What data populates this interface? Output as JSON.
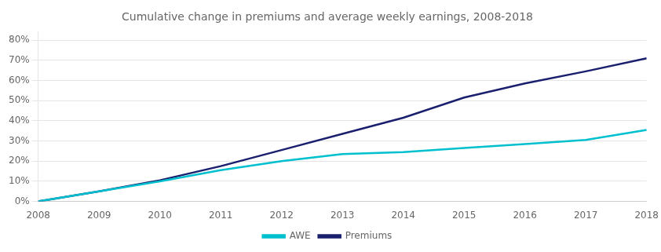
{
  "chart_data": {
    "type": "line",
    "title": "Cumulative change in premiums and average weekly earnings, 2008-2018",
    "x": [
      2008,
      2009,
      2010,
      2011,
      2012,
      2013,
      2014,
      2015,
      2016,
      2017,
      2018
    ],
    "series": [
      {
        "name": "AWE",
        "color": "#00c0d0",
        "values": [
          0.0,
          0.05,
          0.1,
          0.155,
          0.2,
          0.235,
          0.245,
          0.265,
          0.285,
          0.305,
          0.355
        ]
      },
      {
        "name": "Premiums",
        "color": "#1a1f6e",
        "values": [
          0.0,
          0.05,
          0.105,
          0.175,
          0.255,
          0.335,
          0.415,
          0.515,
          0.585,
          0.645,
          0.71
        ]
      }
    ],
    "xlim": [
      2008,
      2018
    ],
    "xticks": [
      2008,
      2009,
      2010,
      2011,
      2012,
      2013,
      2014,
      2015,
      2016,
      2017,
      2018
    ],
    "ylim": [
      0.0,
      0.84
    ],
    "yticks": [
      {
        "value": 0.0,
        "label": "0%"
      },
      {
        "value": 0.1,
        "label": "10%"
      },
      {
        "value": 0.2,
        "label": "20%"
      },
      {
        "value": 0.3,
        "label": "30%"
      },
      {
        "value": 0.4,
        "label": "40%"
      },
      {
        "value": 0.5,
        "label": "50%"
      },
      {
        "value": 0.6,
        "label": "60%"
      },
      {
        "value": 0.7,
        "label": "70%"
      },
      {
        "value": 0.8,
        "label": "80%"
      }
    ],
    "grid": true,
    "legend": "bottom"
  }
}
